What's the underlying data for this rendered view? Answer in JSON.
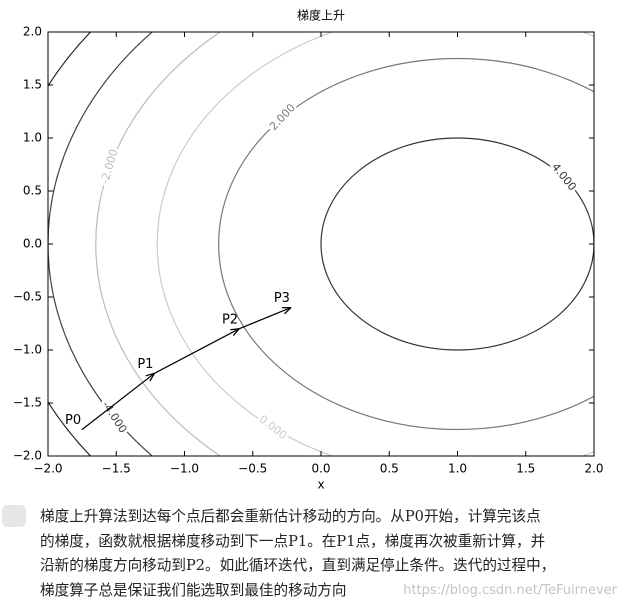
{
  "chart_data": {
    "type": "contour",
    "title": "梯度上升",
    "x_label": "x",
    "xlim": [
      -2,
      2
    ],
    "ylim": [
      -2,
      2
    ],
    "xticks": [
      {
        "value": -2,
        "label": "−2.0"
      },
      {
        "value": -1.5,
        "label": "−1.5"
      },
      {
        "value": -1,
        "label": "−1.0"
      },
      {
        "value": -0.5,
        "label": "−0.5"
      },
      {
        "value": 0,
        "label": "0.0"
      },
      {
        "value": 0.5,
        "label": "0.5"
      },
      {
        "value": 1,
        "label": "1.0"
      },
      {
        "value": 1.5,
        "label": "1.5"
      },
      {
        "value": 2,
        "label": "2.0"
      }
    ],
    "yticks": [
      {
        "value": -2,
        "label": "−2.0"
      },
      {
        "value": -1.5,
        "label": "−1.5"
      },
      {
        "value": -1,
        "label": "−1.0"
      },
      {
        "value": -0.5,
        "label": "−0.5"
      },
      {
        "value": 0,
        "label": "0.0"
      },
      {
        "value": 0.5,
        "label": "0.5"
      },
      {
        "value": 1,
        "label": "1.0"
      },
      {
        "value": 1.5,
        "label": "1.5"
      },
      {
        "value": 2,
        "label": "2.0"
      }
    ],
    "center": [
      1,
      0
    ],
    "contours": [
      {
        "radius": 1,
        "color": "#333333",
        "label": "4.000"
      },
      {
        "radius": 1.75,
        "color": "#777777",
        "label": "2.000"
      },
      {
        "radius": 2.2,
        "color": "#cccccc",
        "label": "0.000"
      },
      {
        "radius": 2.65,
        "color": "#bbbbbb",
        "label": "-2.000"
      },
      {
        "radius": 3,
        "color": "#444444",
        "label": "-4.000"
      },
      {
        "radius": 3.35,
        "color": "#222222"
      }
    ],
    "points": [
      {
        "label": "P0",
        "x": -1.75,
        "y": -1.75
      },
      {
        "label": "P1",
        "x": -1.22,
        "y": -1.22
      },
      {
        "label": "P2",
        "x": -0.6,
        "y": -0.8
      },
      {
        "label": "P3",
        "x": -0.22,
        "y": -0.6
      }
    ]
  },
  "caption": [
    "梯度上升算法到达每个点后都会重新估计移动的方向。从P0开始，计算完该点",
    "的梯度，函数就根据梯度移动到下一点P1。在P1点，梯度再次被重新计算，并",
    "沿新的梯度方向移动到P2。如此循环迭代，直到满足停止条件。迭代的过程中，",
    "梯度算子总是保证我们能选取到最佳的移动方向"
  ],
  "watermark": "https://blog.csdn.net/TeFuirnever"
}
